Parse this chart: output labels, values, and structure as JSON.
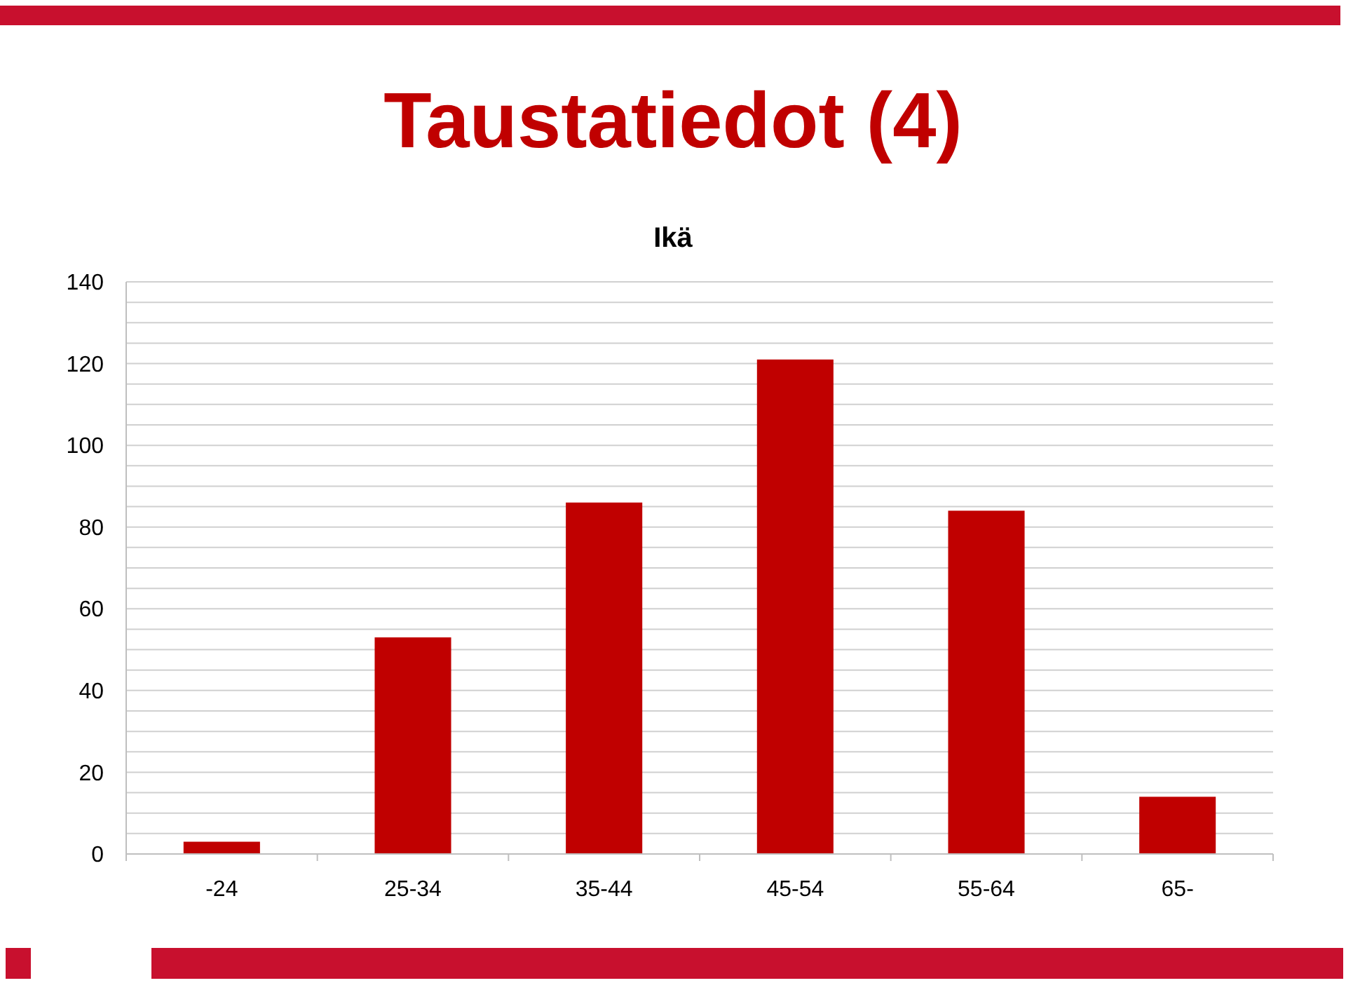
{
  "chart_data": {
    "type": "bar",
    "title": "Taustatiedot (4)",
    "subtitle": "Ikä",
    "categories": [
      "-24",
      "25-34",
      "35-44",
      "45-54",
      "55-64",
      "65-"
    ],
    "values": [
      3,
      53,
      86,
      121,
      84,
      14
    ],
    "color": "#c00000",
    "ylim": [
      0,
      140
    ],
    "yticks": [
      0,
      {
        "value": 5,
        "label": null
      },
      {
        "value": 10,
        "label": null
      },
      {
        "value": 15,
        "label": null
      },
      20,
      {
        "value": 25,
        "label": null
      },
      {
        "value": 30,
        "label": null
      },
      {
        "value": 35,
        "label": null
      },
      40,
      {
        "value": 45,
        "label": null
      },
      {
        "value": 50,
        "label": null
      },
      {
        "value": 55,
        "label": null
      },
      60,
      {
        "value": 65,
        "label": null
      },
      {
        "value": 70,
        "label": null
      },
      {
        "value": 75,
        "label": null
      },
      80,
      {
        "value": 85,
        "label": null
      },
      {
        "value": 90,
        "label": null
      },
      {
        "value": 95,
        "label": null
      },
      100,
      {
        "value": 105,
        "label": null
      },
      {
        "value": 110,
        "label": null
      },
      {
        "value": 115,
        "label": null
      },
      120,
      {
        "value": 125,
        "label": null
      },
      {
        "value": 130,
        "label": null
      },
      {
        "value": 135,
        "label": null
      },
      140
    ],
    "grid": true
  }
}
